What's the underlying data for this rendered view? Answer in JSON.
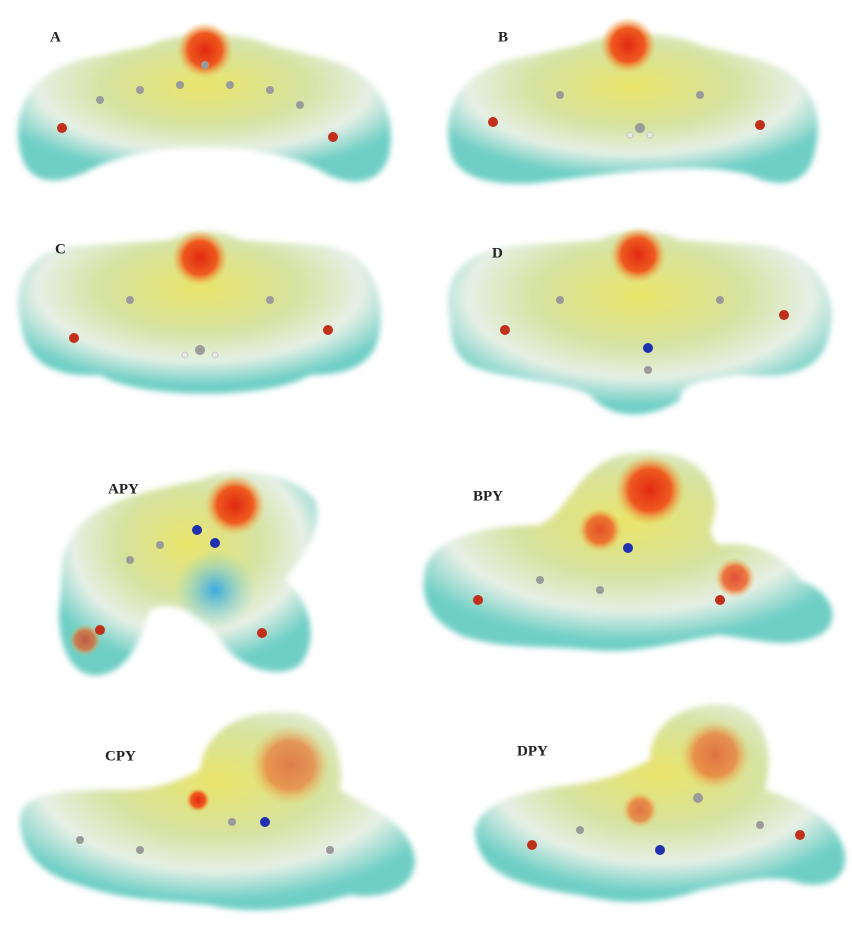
{
  "panels": [
    {
      "label": "A"
    },
    {
      "label": "B"
    },
    {
      "label": "C"
    },
    {
      "label": "D"
    },
    {
      "label": "APY"
    },
    {
      "label": "BPY"
    },
    {
      "label": "CPY"
    },
    {
      "label": "DPY"
    }
  ]
}
